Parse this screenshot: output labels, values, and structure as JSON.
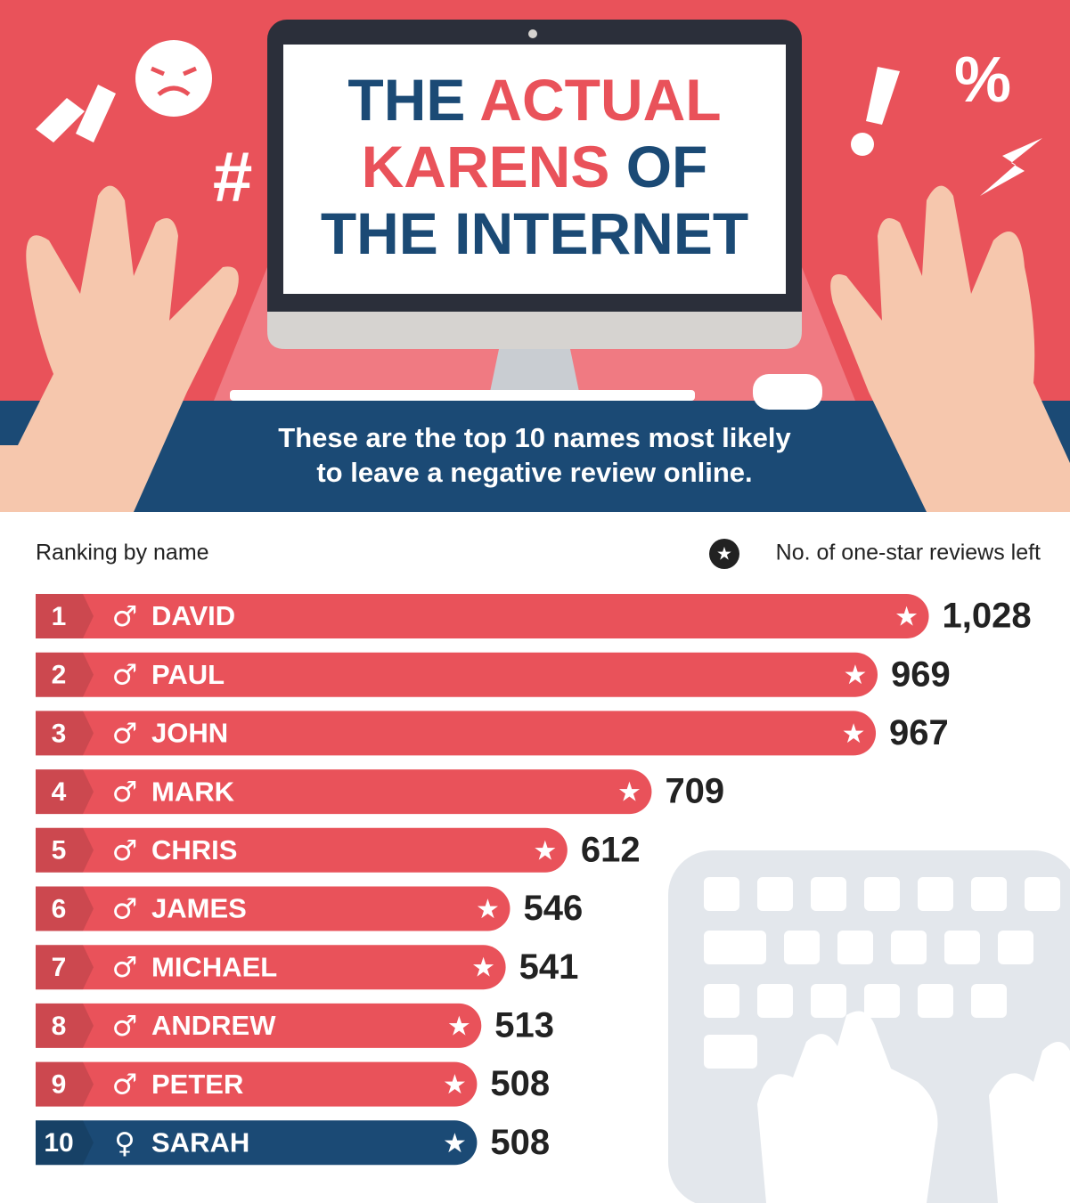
{
  "chart_data": {
    "type": "bar",
    "title_lines": [
      [
        {
          "text": "THE ",
          "color": "#1b4a75"
        },
        {
          "text": "ACTUAL",
          "color": "#e9525a"
        }
      ],
      [
        {
          "text": "KARENS ",
          "color": "#e9525a"
        },
        {
          "text": "OF",
          "color": "#1b4a75"
        }
      ],
      [
        {
          "text": "THE INTERNET",
          "color": "#1b4a75"
        }
      ]
    ],
    "subtitle_lines": [
      "These are the top 10 names most likely",
      "to leave a negative review online."
    ],
    "category_label": "Ranking by name",
    "value_label": "No. of one-star reviews left",
    "ranks": [
      "1",
      "2",
      "3",
      "4",
      "5",
      "6",
      "7",
      "8",
      "9",
      "10"
    ],
    "symbols": [
      "♂",
      "♂",
      "♂",
      "♂",
      "♂",
      "♂",
      "♂",
      "♂",
      "♂",
      "♀"
    ],
    "categories": [
      "DAVID",
      "PAUL",
      "JOHN",
      "MARK",
      "CHRIS",
      "JAMES",
      "MICHAEL",
      "ANDREW",
      "PETER",
      "SARAH"
    ],
    "values": [
      1028,
      969,
      967,
      709,
      612,
      546,
      541,
      513,
      508,
      508
    ],
    "value_labels": [
      "1,028",
      "969",
      "967",
      "709",
      "612",
      "546",
      "541",
      "513",
      "508",
      "508"
    ],
    "colors": [
      "#e9525a",
      "#e9525a",
      "#e9525a",
      "#e9525a",
      "#e9525a",
      "#e9525a",
      "#e9525a",
      "#e9525a",
      "#e9525a",
      "#1b4a75"
    ],
    "xlim": [
      0,
      1050
    ]
  }
}
